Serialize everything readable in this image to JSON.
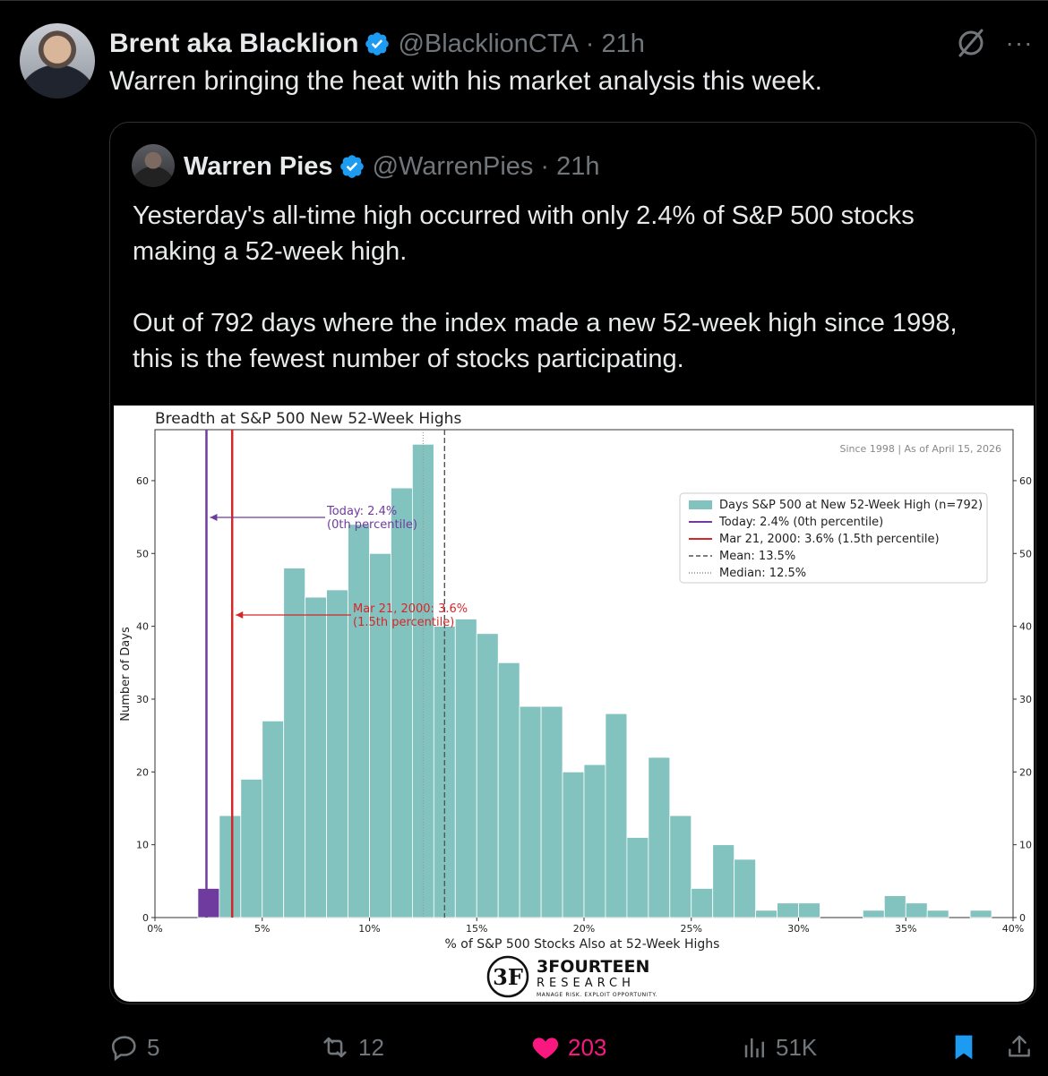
{
  "tweet": {
    "author_name": "Brent aka Blacklion",
    "handle": "@BlacklionCTA",
    "separator": "·",
    "time": "21h",
    "text": "Warren bringing the heat with his market analysis this week.",
    "more": "···"
  },
  "quote": {
    "author_name": "Warren Pies",
    "handle": "@WarrenPies",
    "separator": "·",
    "time": "21h",
    "paragraphs": [
      "Yesterday's all-time high occurred with only 2.4% of S&P 500 stocks",
      "making a 52-week high.",
      "Out of 792 days where the index made a new 52-week high since 1998,",
      "this is the fewest number of stocks participating."
    ]
  },
  "actions": {
    "replies": "5",
    "reposts": "12",
    "likes": "203",
    "views": "51K"
  },
  "colors": {
    "background": "#000000",
    "verified": "#1d9bf0",
    "like": "#f91880",
    "bookmark": "#1d9bf0",
    "bars": "#82c3c0",
    "today_line": "#6f3b9e",
    "mar2000_line": "#d62728"
  },
  "chart_data": {
    "type": "bar",
    "title": "Breadth at S&P 500 New 52-Week Highs",
    "subtitle": "Since 1998  |  As of April 15, 2026",
    "xlabel": "% of S&P 500 Stocks Also at 52-Week Highs",
    "ylabel": "Number of Days",
    "xlim": [
      0,
      40
    ],
    "ylim": [
      0,
      67
    ],
    "xticks": [
      "0%",
      "5%",
      "10%",
      "15%",
      "20%",
      "25%",
      "30%",
      "35%",
      "40%"
    ],
    "yticks": [
      "0",
      "10",
      "20",
      "30",
      "40",
      "50",
      "60"
    ],
    "bin_width": 1,
    "x": [
      2,
      3,
      4,
      5,
      6,
      7,
      8,
      9,
      10,
      11,
      12,
      13,
      14,
      15,
      16,
      17,
      18,
      19,
      20,
      21,
      22,
      23,
      24,
      25,
      26,
      27,
      28,
      29,
      30,
      31,
      32,
      33,
      34,
      35,
      36,
      37,
      38
    ],
    "values": [
      4,
      14,
      19,
      27,
      48,
      44,
      45,
      54,
      50,
      59,
      65,
      40,
      41,
      39,
      35,
      29,
      29,
      20,
      21,
      28,
      11,
      22,
      14,
      4,
      10,
      8,
      1,
      2,
      2,
      0,
      0,
      1,
      3,
      2,
      1,
      0,
      1
    ],
    "highlight_bin": 2,
    "lines": {
      "today": 2.4,
      "mar2000": 3.6,
      "mean": 13.5,
      "median": 12.5
    },
    "annotations": {
      "today_line1": "Today: 2.4%",
      "today_line2": "(0th percentile)",
      "mar_line1": "Mar 21, 2000: 3.6%",
      "mar_line2": "(1.5th percentile)"
    },
    "legend": [
      "Days S&P 500 at New 52-Week High (n=792)",
      "Today: 2.4% (0th percentile)",
      "Mar 21, 2000: 3.6% (1.5th percentile)",
      "Mean: 13.5%",
      "Median: 12.5%"
    ],
    "legend_position": "top-right",
    "grid": false
  },
  "logo": {
    "mark": "3F",
    "name": "3FOURTEEN",
    "sub": "RESEARCH",
    "tagline": "MANAGE RISK. EXPLOIT OPPORTUNITY."
  }
}
